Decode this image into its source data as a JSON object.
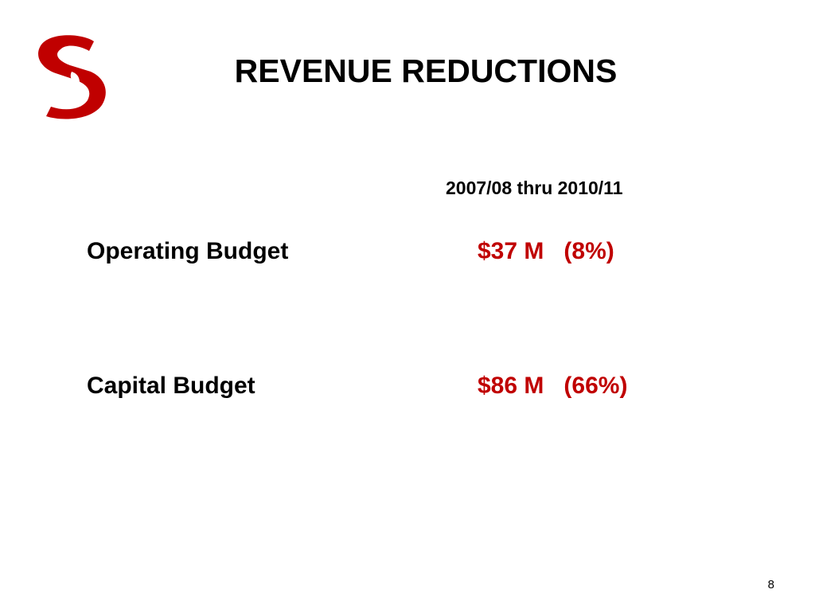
{
  "slide": {
    "title": "REVENUE REDUCTIONS",
    "column_header": "2007/08 thru 2010/11",
    "rows": [
      {
        "label": "Operating Budget",
        "amount": "$37 M",
        "percent": "(8%)"
      },
      {
        "label": "Capital Budget",
        "amount": "$86 M",
        "percent": "(66%)"
      }
    ],
    "slide_number": "8"
  },
  "colors": {
    "accent_red": "#c00000",
    "text": "#000000",
    "background": "#ffffff"
  },
  "logo": {
    "icon": "red-s-apple-logo-icon"
  }
}
